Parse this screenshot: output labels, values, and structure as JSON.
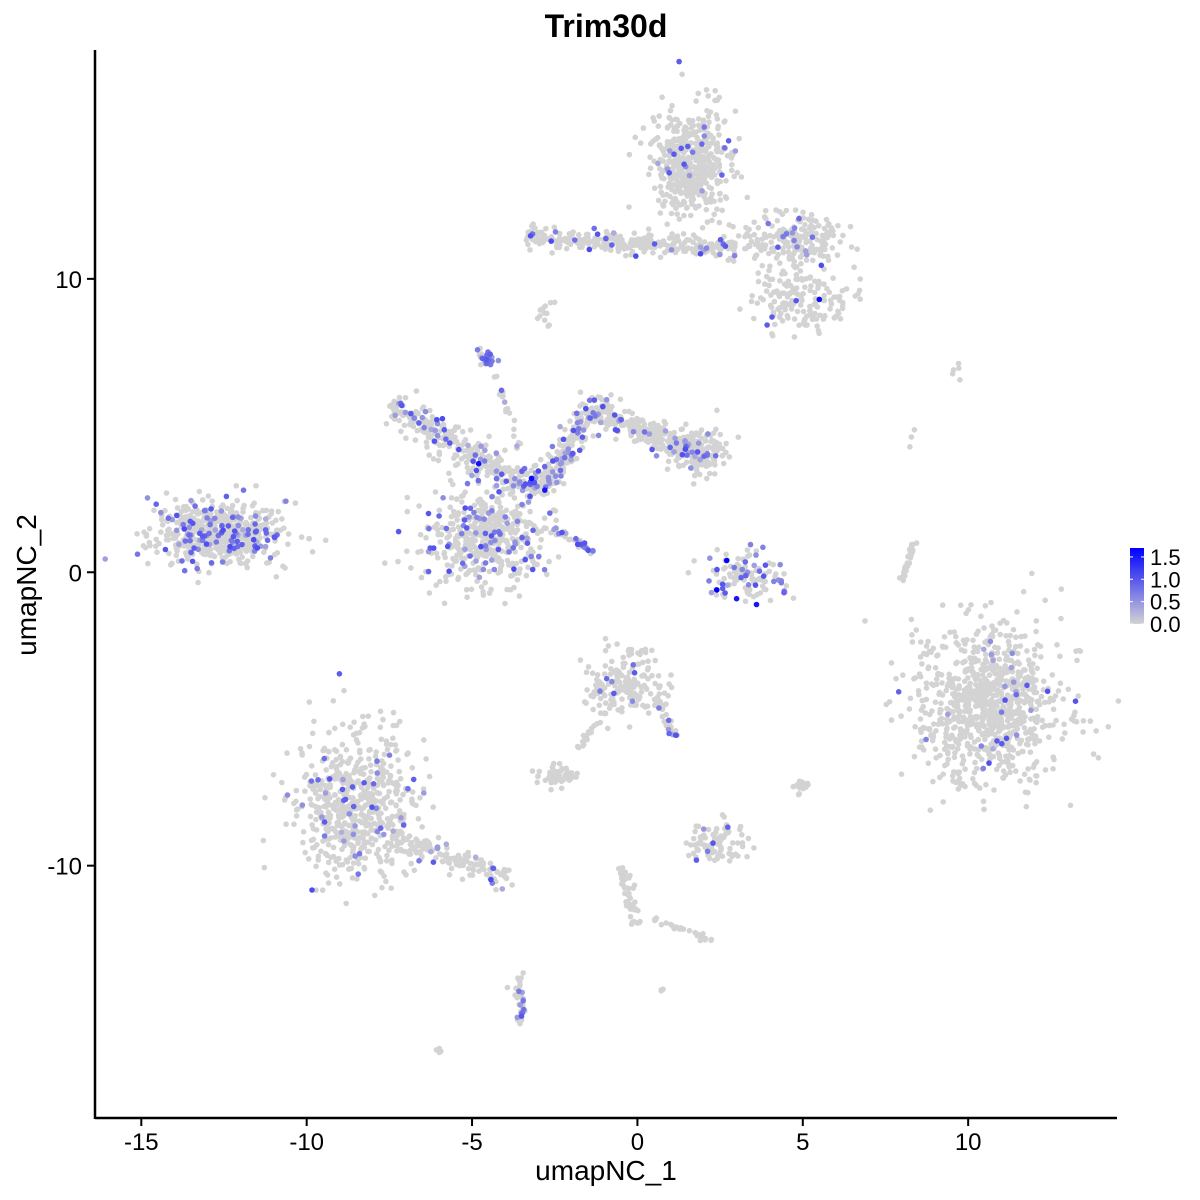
{
  "chart_data": {
    "type": "scatter",
    "title": "Trim30d",
    "xlabel": "umapNC_1",
    "ylabel": "umapNC_2",
    "xlim": [
      -16.4,
      14.5
    ],
    "ylim": [
      -18.6,
      17.8
    ],
    "xticks": [
      -15,
      -10,
      -5,
      0,
      5,
      10
    ],
    "xtick_labels": [
      "-15",
      "-10",
      "-5",
      "0",
      "5",
      "10"
    ],
    "yticks": [
      -10,
      0,
      10
    ],
    "ytick_labels": [
      "-10",
      "0",
      "10"
    ],
    "grid": false,
    "legend": {
      "placement": "right",
      "type": "colorbar",
      "range": [
        0,
        1.7
      ],
      "ticks": [
        0,
        0.5,
        1.0,
        1.5
      ],
      "tick_labels": [
        "0.0",
        "0.5",
        "1.0",
        "1.5"
      ],
      "low_color": "#D3D3D3",
      "high_color": "#0000FF"
    },
    "point_groups": [
      {
        "shape": "blob",
        "center": [
          -12.7,
          1.3
        ],
        "sd": [
          1.0,
          0.55
        ],
        "n": 520,
        "expressing_fraction": 0.18
      },
      {
        "shape": "blob",
        "center": [
          -4.6,
          1.2
        ],
        "sd": [
          0.9,
          0.8
        ],
        "n": 480,
        "expressing_fraction": 0.15
      },
      {
        "shape": "segment",
        "from": [
          -7.5,
          5.7
        ],
        "to": [
          -3.0,
          2.7
        ],
        "width": 0.5,
        "n": 320,
        "expressing_fraction": 0.15
      },
      {
        "shape": "segment",
        "from": [
          -3.0,
          2.7
        ],
        "to": [
          -1.2,
          6.0
        ],
        "width": 0.4,
        "n": 220,
        "expressing_fraction": 0.18
      },
      {
        "shape": "segment",
        "from": [
          -1.2,
          5.5
        ],
        "to": [
          2.3,
          3.8
        ],
        "width": 0.45,
        "n": 260,
        "expressing_fraction": 0.12
      },
      {
        "shape": "blob",
        "center": [
          1.8,
          4.2
        ],
        "sd": [
          0.5,
          0.4
        ],
        "n": 120,
        "expressing_fraction": 0.05
      },
      {
        "shape": "segment",
        "from": [
          -2.5,
          1.5
        ],
        "to": [
          -1.2,
          0.6
        ],
        "width": 0.1,
        "n": 40,
        "expressing_fraction": 0.5
      },
      {
        "shape": "segment",
        "from": [
          -4.4,
          6.9
        ],
        "to": [
          -3.0,
          2.7
        ],
        "width": 0.1,
        "n": 30,
        "expressing_fraction": 0.2
      },
      {
        "shape": "blob",
        "center": [
          -4.6,
          7.3
        ],
        "sd": [
          0.12,
          0.15
        ],
        "n": 30,
        "expressing_fraction": 0.7
      },
      {
        "shape": "blob",
        "center": [
          1.6,
          14.0
        ],
        "sd": [
          0.6,
          0.9
        ],
        "n": 480,
        "expressing_fraction": 0.05
      },
      {
        "shape": "segment",
        "from": [
          -3.4,
          11.4
        ],
        "to": [
          3.0,
          11.0
        ],
        "width": 0.35,
        "n": 300,
        "expressing_fraction": 0.06
      },
      {
        "shape": "blob",
        "center": [
          4.7,
          11.3
        ],
        "sd": [
          0.8,
          0.4
        ],
        "n": 220,
        "expressing_fraction": 0.08
      },
      {
        "shape": "blob",
        "center": [
          5.0,
          9.3
        ],
        "sd": [
          0.7,
          0.5
        ],
        "n": 160,
        "expressing_fraction": 0.03
      },
      {
        "shape": "blob",
        "center": [
          3.3,
          -0.1
        ],
        "sd": [
          0.6,
          0.45
        ],
        "n": 110,
        "expressing_fraction": 0.3
      },
      {
        "shape": "blob",
        "center": [
          10.6,
          -4.5
        ],
        "sd": [
          1.1,
          1.35
        ],
        "n": 900,
        "expressing_fraction": 0.03
      },
      {
        "shape": "blob",
        "center": [
          -8.5,
          -8.0
        ],
        "sd": [
          0.9,
          1.2
        ],
        "n": 620,
        "expressing_fraction": 0.06
      },
      {
        "shape": "segment",
        "from": [
          -7.5,
          -9.0
        ],
        "to": [
          -3.7,
          -10.5
        ],
        "width": 0.4,
        "n": 140,
        "expressing_fraction": 0.06
      },
      {
        "shape": "blob",
        "center": [
          -0.4,
          -3.8
        ],
        "sd": [
          0.55,
          0.6
        ],
        "n": 170,
        "expressing_fraction": 0.06
      },
      {
        "shape": "segment",
        "from": [
          0.5,
          -4.2
        ],
        "to": [
          1.2,
          -5.6
        ],
        "width": 0.15,
        "n": 30,
        "expressing_fraction": 0.25
      },
      {
        "shape": "blob",
        "center": [
          2.4,
          -9.2
        ],
        "sd": [
          0.4,
          0.35
        ],
        "n": 90,
        "expressing_fraction": 0.05
      },
      {
        "shape": "blob",
        "center": [
          -2.5,
          -6.9
        ],
        "sd": [
          0.3,
          0.2
        ],
        "n": 50,
        "expressing_fraction": 0.0
      },
      {
        "shape": "segment",
        "from": [
          -1.8,
          -6.0
        ],
        "to": [
          -0.8,
          -4.5
        ],
        "width": 0.1,
        "n": 25,
        "expressing_fraction": 0.0
      },
      {
        "shape": "segment",
        "from": [
          -0.5,
          -10.0
        ],
        "to": [
          0.0,
          -12.0
        ],
        "width": 0.2,
        "n": 50,
        "expressing_fraction": 0.0
      },
      {
        "shape": "segment",
        "from": [
          0.5,
          -11.8
        ],
        "to": [
          2.4,
          -12.6
        ],
        "width": 0.1,
        "n": 30,
        "expressing_fraction": 0.0
      },
      {
        "shape": "segment",
        "from": [
          -3.6,
          -13.6
        ],
        "to": [
          -3.5,
          -15.4
        ],
        "width": 0.15,
        "n": 35,
        "expressing_fraction": 0.2
      },
      {
        "shape": "segment",
        "from": [
          8.0,
          -0.3
        ],
        "to": [
          8.4,
          1.2
        ],
        "width": 0.08,
        "n": 30,
        "expressing_fraction": 0.0
      },
      {
        "shape": "blob",
        "center": [
          5.0,
          -7.3
        ],
        "sd": [
          0.1,
          0.15
        ],
        "n": 20,
        "expressing_fraction": 0.0
      },
      {
        "shape": "blob",
        "center": [
          -2.8,
          8.7
        ],
        "sd": [
          0.12,
          0.25
        ],
        "n": 12,
        "expressing_fraction": 0.0
      },
      {
        "shape": "blob",
        "center": [
          -6.0,
          -16.3
        ],
        "sd": [
          0.05,
          0.05
        ],
        "n": 4,
        "expressing_fraction": 0.0
      },
      {
        "shape": "blob",
        "center": [
          9.8,
          6.8
        ],
        "sd": [
          0.2,
          0.15
        ],
        "n": 5,
        "expressing_fraction": 0.0
      },
      {
        "shape": "blob",
        "center": [
          0.7,
          -14.2
        ],
        "sd": [
          0.05,
          0.05
        ],
        "n": 3,
        "expressing_fraction": 0.0
      },
      {
        "shape": "blob",
        "center": [
          8.2,
          4.7
        ],
        "sd": [
          0.1,
          0.2
        ],
        "n": 3,
        "expressing_fraction": 0.0
      }
    ],
    "high_expression_points": [
      [
        2.7,
        0.4
      ],
      [
        3.0,
        -0.9
      ],
      [
        2.4,
        -0.6
      ],
      [
        3.6,
        -1.1
      ],
      [
        -3.2,
        3.2
      ],
      [
        -4.8,
        3.7
      ],
      [
        5.5,
        9.3
      ],
      [
        -2.8,
        2.8
      ]
    ]
  }
}
